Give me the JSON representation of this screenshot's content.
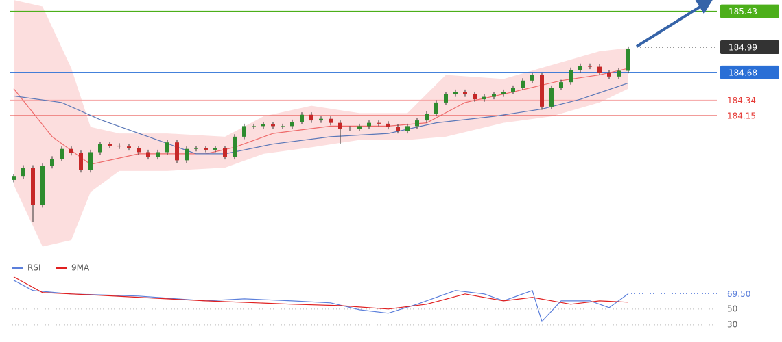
{
  "chart_data": [
    {
      "type": "candlestick",
      "ylim": [
        182.46,
        185.57
      ],
      "up_color": "#2e8b2e",
      "down_color": "#c62828",
      "open": [
        183.36,
        183.4,
        183.51,
        183.05,
        183.53,
        183.62,
        183.74,
        183.69,
        183.48,
        183.7,
        183.8,
        183.78,
        183.77,
        183.75,
        183.7,
        183.64,
        183.7,
        183.82,
        183.6,
        183.74,
        183.75,
        183.73,
        183.75,
        183.64,
        183.89,
        184.02,
        184.02,
        184.04,
        184.02,
        184.02,
        184.07,
        184.16,
        184.09,
        184.11,
        184.06,
        183.99,
        183.99,
        184.02,
        184.06,
        184.05,
        184.01,
        183.96,
        184.02,
        184.09,
        184.17,
        184.31,
        184.41,
        184.44,
        184.41,
        184.35,
        184.38,
        184.41,
        184.44,
        184.49,
        184.58,
        184.65,
        184.26,
        184.49,
        184.56,
        184.71,
        184.76,
        184.75,
        184.68,
        184.63,
        184.7
      ],
      "high": [
        183.43,
        183.54,
        183.54,
        183.56,
        183.65,
        183.77,
        183.77,
        183.72,
        183.73,
        183.83,
        183.83,
        183.81,
        183.8,
        183.78,
        183.73,
        183.73,
        183.85,
        183.85,
        183.77,
        183.78,
        183.78,
        183.78,
        183.78,
        183.92,
        184.05,
        184.05,
        184.07,
        184.07,
        184.05,
        184.1,
        184.19,
        184.19,
        184.14,
        184.14,
        184.09,
        184.02,
        184.05,
        184.09,
        184.09,
        184.08,
        184.04,
        184.05,
        184.12,
        184.2,
        184.34,
        184.44,
        184.47,
        184.47,
        184.44,
        184.41,
        184.44,
        184.47,
        184.52,
        184.61,
        184.68,
        184.68,
        184.52,
        184.59,
        184.74,
        184.79,
        184.79,
        184.78,
        184.71,
        184.73,
        185.0
      ],
      "low": [
        183.33,
        183.37,
        182.84,
        183.02,
        183.5,
        183.59,
        183.66,
        183.45,
        183.45,
        183.67,
        183.75,
        183.74,
        183.72,
        183.67,
        183.61,
        183.61,
        183.67,
        183.57,
        183.57,
        183.71,
        183.7,
        183.7,
        183.61,
        183.61,
        183.86,
        183.99,
        183.99,
        183.99,
        183.99,
        183.99,
        184.04,
        184.06,
        184.06,
        184.03,
        183.8,
        183.96,
        183.96,
        183.99,
        184.02,
        183.98,
        183.93,
        183.93,
        183.99,
        184.06,
        184.14,
        184.28,
        184.38,
        184.38,
        184.32,
        184.32,
        184.35,
        184.38,
        184.41,
        184.46,
        184.55,
        184.22,
        184.23,
        184.46,
        184.53,
        184.68,
        184.72,
        184.65,
        184.6,
        184.6,
        184.67
      ],
      "close": [
        183.4,
        183.51,
        183.05,
        183.53,
        183.62,
        183.74,
        183.69,
        183.48,
        183.7,
        183.8,
        183.78,
        183.77,
        183.75,
        183.7,
        183.64,
        183.7,
        183.82,
        183.6,
        183.74,
        183.75,
        183.73,
        183.75,
        183.64,
        183.89,
        184.02,
        184.02,
        184.04,
        184.02,
        184.02,
        184.07,
        184.16,
        184.09,
        184.11,
        184.06,
        183.99,
        183.99,
        184.02,
        184.06,
        184.05,
        184.01,
        183.96,
        184.02,
        184.09,
        184.17,
        184.31,
        184.41,
        184.44,
        184.41,
        184.35,
        184.38,
        184.41,
        184.44,
        184.49,
        184.58,
        184.65,
        184.26,
        184.49,
        184.56,
        184.71,
        184.76,
        184.75,
        184.68,
        184.63,
        184.7,
        184.97
      ],
      "band": {
        "color": "#fbd6d6",
        "x": [
          0,
          3,
          6,
          8,
          11,
          16,
          22,
          26,
          31,
          36,
          41,
          45,
          51,
          56,
          61,
          64
        ],
        "upper": [
          185.57,
          185.49,
          184.73,
          184.01,
          183.93,
          183.93,
          183.89,
          184.14,
          184.27,
          184.18,
          184.18,
          184.65,
          184.6,
          184.77,
          184.94,
          184.98
        ],
        "lower": [
          183.3,
          182.54,
          182.62,
          183.21,
          183.47,
          183.47,
          183.51,
          183.68,
          183.76,
          183.85,
          183.85,
          183.89,
          184.06,
          184.14,
          184.31,
          184.48
        ]
      },
      "overlays": [
        {
          "color": "#ee6a6a",
          "x": [
            0,
            4,
            8,
            13,
            20,
            23,
            27,
            33,
            39,
            43,
            47,
            52,
            57,
            61,
            64
          ],
          "values": [
            184.48,
            183.89,
            183.55,
            183.68,
            183.68,
            183.76,
            183.93,
            184.02,
            184.02,
            184.06,
            184.31,
            184.44,
            184.58,
            184.65,
            184.73
          ]
        },
        {
          "color": "#5b78b8",
          "x": [
            0,
            5,
            9,
            14,
            19,
            22,
            27,
            33,
            39,
            44,
            50,
            55,
            59,
            64
          ],
          "values": [
            184.39,
            184.31,
            184.1,
            183.89,
            183.68,
            183.68,
            183.8,
            183.89,
            183.93,
            184.06,
            184.14,
            184.23,
            184.35,
            184.55
          ]
        }
      ],
      "levels": [
        {
          "value": 185.43,
          "color": "#4caf1a",
          "style": "box"
        },
        {
          "value": 184.99,
          "color": "#333333",
          "style": "box"
        },
        {
          "value": 184.68,
          "color": "#2a6fd6",
          "style": "box"
        },
        {
          "value": 184.34,
          "color": "#f5a3a3",
          "style": "text"
        },
        {
          "value": 184.15,
          "color": "#e53935",
          "style": "text"
        }
      ]
    },
    {
      "type": "line",
      "ylim": [
        12.5,
        95
      ],
      "yticks": [
        50,
        30
      ],
      "legend": "top-left",
      "last_value": {
        "value": 69.5,
        "label": "69.50"
      },
      "series": [
        {
          "name": "RSI",
          "color": "#5b7fdb",
          "x": [
            0,
            2,
            6,
            13,
            20,
            24,
            29,
            33,
            36,
            39,
            42,
            46,
            49,
            51,
            54,
            55,
            57,
            60,
            62,
            64
          ],
          "values": [
            86.5,
            73.5,
            69.1,
            66.5,
            60.4,
            63.0,
            60.4,
            57.8,
            49.1,
            44.8,
            56.1,
            73.5,
            69.1,
            60.4,
            73.5,
            34.3,
            60.4,
            60.4,
            51.7,
            69.5
          ]
        },
        {
          "name": "9MA",
          "color": "#e02020",
          "x": [
            0,
            3,
            9,
            20,
            29,
            34,
            39,
            43,
            47,
            51,
            54,
            58,
            61,
            64
          ],
          "values": [
            90.9,
            70.9,
            67.4,
            60.4,
            56.1,
            54.3,
            50.0,
            56.1,
            69.1,
            60.4,
            64.8,
            56.1,
            60.4,
            58.7
          ]
        }
      ]
    }
  ]
}
